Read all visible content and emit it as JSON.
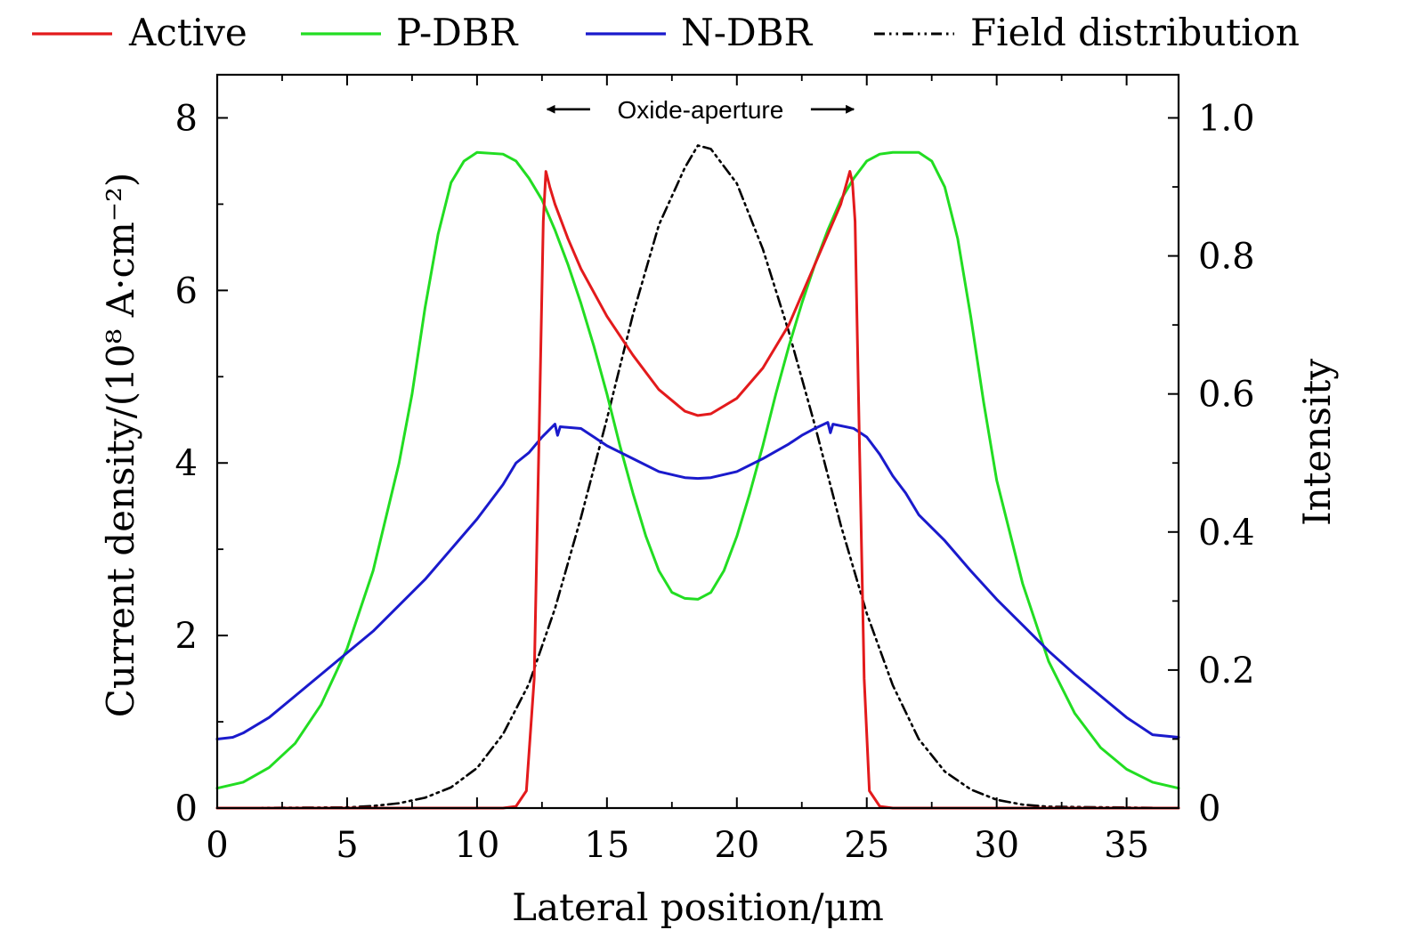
{
  "chart_data": {
    "type": "line",
    "xlabel": "Lateral position/μm",
    "ylabel": "Current density/(10⁸ A·cm⁻²)",
    "y2label": "Intensity",
    "xlim": [
      0,
      37
    ],
    "ylim": [
      0,
      8.5
    ],
    "y2lim": [
      0,
      1.0625
    ],
    "xticks": [
      0,
      5,
      10,
      15,
      20,
      25,
      30,
      35
    ],
    "xtick_labels": [
      "0",
      "5",
      "10",
      "15",
      "20",
      "25",
      "30",
      "35"
    ],
    "yticks": [
      0,
      2,
      4,
      6,
      8
    ],
    "ytick_labels": [
      "0",
      "2",
      "4",
      "6",
      "8"
    ],
    "y2ticks": [
      0,
      0.2,
      0.4,
      0.6,
      0.8,
      1.0
    ],
    "y2tick_labels": [
      "0",
      "0.2",
      "0.4",
      "0.6",
      "0.8",
      "1.0"
    ],
    "legend_position": "top",
    "annotation": {
      "text": "Oxide-aperture",
      "x_start": 12.7,
      "x_end": 24.5,
      "y": 8.1
    },
    "series": [
      {
        "name": "Active",
        "axis": "left",
        "color": "#e31a1c",
        "dash": "solid",
        "points": [
          [
            0,
            0
          ],
          [
            10,
            0
          ],
          [
            11,
            0
          ],
          [
            11.5,
            0.02
          ],
          [
            11.9,
            0.2
          ],
          [
            12.2,
            1.5
          ],
          [
            12.4,
            4.5
          ],
          [
            12.55,
            6.8
          ],
          [
            12.65,
            7.38
          ],
          [
            12.8,
            7.2
          ],
          [
            13,
            7.0
          ],
          [
            13.5,
            6.6
          ],
          [
            14,
            6.25
          ],
          [
            15,
            5.7
          ],
          [
            16,
            5.25
          ],
          [
            17,
            4.85
          ],
          [
            18,
            4.6
          ],
          [
            18.5,
            4.55
          ],
          [
            19,
            4.57
          ],
          [
            20,
            4.75
          ],
          [
            21,
            5.1
          ],
          [
            22,
            5.6
          ],
          [
            23,
            6.3
          ],
          [
            24,
            7.0
          ],
          [
            24.35,
            7.38
          ],
          [
            24.45,
            7.25
          ],
          [
            24.55,
            6.8
          ],
          [
            24.7,
            4.5
          ],
          [
            24.9,
            1.5
          ],
          [
            25.1,
            0.2
          ],
          [
            25.5,
            0.02
          ],
          [
            26,
            0
          ],
          [
            30,
            0
          ],
          [
            37,
            0
          ]
        ]
      },
      {
        "name": "P-DBR",
        "axis": "left",
        "color": "#22dd22",
        "dash": "solid",
        "points": [
          [
            0,
            0.23
          ],
          [
            1,
            0.3
          ],
          [
            2,
            0.47
          ],
          [
            3,
            0.75
          ],
          [
            4,
            1.2
          ],
          [
            5,
            1.85
          ],
          [
            6,
            2.75
          ],
          [
            7,
            4.0
          ],
          [
            7.5,
            4.8
          ],
          [
            8,
            5.8
          ],
          [
            8.5,
            6.65
          ],
          [
            9,
            7.25
          ],
          [
            9.5,
            7.5
          ],
          [
            10,
            7.6
          ],
          [
            11,
            7.58
          ],
          [
            11.5,
            7.5
          ],
          [
            12,
            7.3
          ],
          [
            12.5,
            7.05
          ],
          [
            13,
            6.7
          ],
          [
            13.5,
            6.3
          ],
          [
            14,
            5.85
          ],
          [
            14.5,
            5.35
          ],
          [
            15,
            4.8
          ],
          [
            15.5,
            4.2
          ],
          [
            16,
            3.65
          ],
          [
            16.5,
            3.15
          ],
          [
            17,
            2.75
          ],
          [
            17.5,
            2.5
          ],
          [
            18,
            2.43
          ],
          [
            18.5,
            2.42
          ],
          [
            19,
            2.5
          ],
          [
            19.5,
            2.75
          ],
          [
            20,
            3.15
          ],
          [
            20.5,
            3.65
          ],
          [
            21,
            4.2
          ],
          [
            21.5,
            4.8
          ],
          [
            22,
            5.35
          ],
          [
            22.5,
            5.85
          ],
          [
            23,
            6.3
          ],
          [
            23.5,
            6.7
          ],
          [
            24,
            7.05
          ],
          [
            24.5,
            7.3
          ],
          [
            25,
            7.5
          ],
          [
            25.5,
            7.58
          ],
          [
            26,
            7.6
          ],
          [
            27,
            7.6
          ],
          [
            27.5,
            7.5
          ],
          [
            28,
            7.2
          ],
          [
            28.5,
            6.6
          ],
          [
            29,
            5.7
          ],
          [
            29.5,
            4.7
          ],
          [
            30,
            3.8
          ],
          [
            31,
            2.6
          ],
          [
            32,
            1.7
          ],
          [
            33,
            1.1
          ],
          [
            34,
            0.7
          ],
          [
            35,
            0.45
          ],
          [
            36,
            0.3
          ],
          [
            37,
            0.23
          ]
        ]
      },
      {
        "name": "N-DBR",
        "axis": "left",
        "color": "#1a1acc",
        "dash": "solid",
        "points": [
          [
            0,
            0.8
          ],
          [
            0.6,
            0.82
          ],
          [
            1,
            0.87
          ],
          [
            2,
            1.05
          ],
          [
            3,
            1.3
          ],
          [
            4,
            1.55
          ],
          [
            5,
            1.8
          ],
          [
            6,
            2.05
          ],
          [
            7,
            2.35
          ],
          [
            8,
            2.65
          ],
          [
            9,
            3.0
          ],
          [
            10,
            3.35
          ],
          [
            11,
            3.75
          ],
          [
            11.5,
            4.0
          ],
          [
            12,
            4.12
          ],
          [
            12.5,
            4.3
          ],
          [
            13,
            4.45
          ],
          [
            13.1,
            4.32
          ],
          [
            13.2,
            4.42
          ],
          [
            14,
            4.4
          ],
          [
            14.5,
            4.3
          ],
          [
            15,
            4.2
          ],
          [
            16,
            4.05
          ],
          [
            17,
            3.9
          ],
          [
            18,
            3.83
          ],
          [
            18.5,
            3.82
          ],
          [
            19,
            3.83
          ],
          [
            20,
            3.9
          ],
          [
            21,
            4.05
          ],
          [
            22,
            4.22
          ],
          [
            22.5,
            4.32
          ],
          [
            23,
            4.4
          ],
          [
            23.5,
            4.47
          ],
          [
            23.6,
            4.35
          ],
          [
            23.7,
            4.45
          ],
          [
            24.5,
            4.4
          ],
          [
            25,
            4.3
          ],
          [
            25.5,
            4.1
          ],
          [
            26,
            3.85
          ],
          [
            26.5,
            3.65
          ],
          [
            27,
            3.4
          ],
          [
            28,
            3.1
          ],
          [
            29,
            2.75
          ],
          [
            30,
            2.42
          ],
          [
            31,
            2.12
          ],
          [
            32,
            1.82
          ],
          [
            33,
            1.55
          ],
          [
            34,
            1.3
          ],
          [
            35,
            1.05
          ],
          [
            36,
            0.85
          ],
          [
            37,
            0.82
          ]
        ]
      },
      {
        "name": "Field distribution",
        "axis": "right",
        "color": "#000000",
        "dash": "dashdotdot",
        "points": [
          [
            0,
            0
          ],
          [
            5,
            0.001
          ],
          [
            6,
            0.003
          ],
          [
            7,
            0.007
          ],
          [
            8,
            0.015
          ],
          [
            9,
            0.03
          ],
          [
            10,
            0.058
          ],
          [
            11,
            0.107
          ],
          [
            12,
            0.18
          ],
          [
            13,
            0.289
          ],
          [
            14,
            0.421
          ],
          [
            15,
            0.564
          ],
          [
            16,
            0.715
          ],
          [
            17,
            0.845
          ],
          [
            18,
            0.928
          ],
          [
            18.5,
            0.96
          ],
          [
            19,
            0.955
          ],
          [
            20,
            0.905
          ],
          [
            21,
            0.81
          ],
          [
            22,
            0.69
          ],
          [
            23,
            0.555
          ],
          [
            24,
            0.41
          ],
          [
            25,
            0.282
          ],
          [
            26,
            0.178
          ],
          [
            27,
            0.1
          ],
          [
            28,
            0.053
          ],
          [
            29,
            0.027
          ],
          [
            30,
            0.012
          ],
          [
            31,
            0.005
          ],
          [
            32,
            0.002
          ],
          [
            37,
            0
          ]
        ]
      }
    ]
  }
}
